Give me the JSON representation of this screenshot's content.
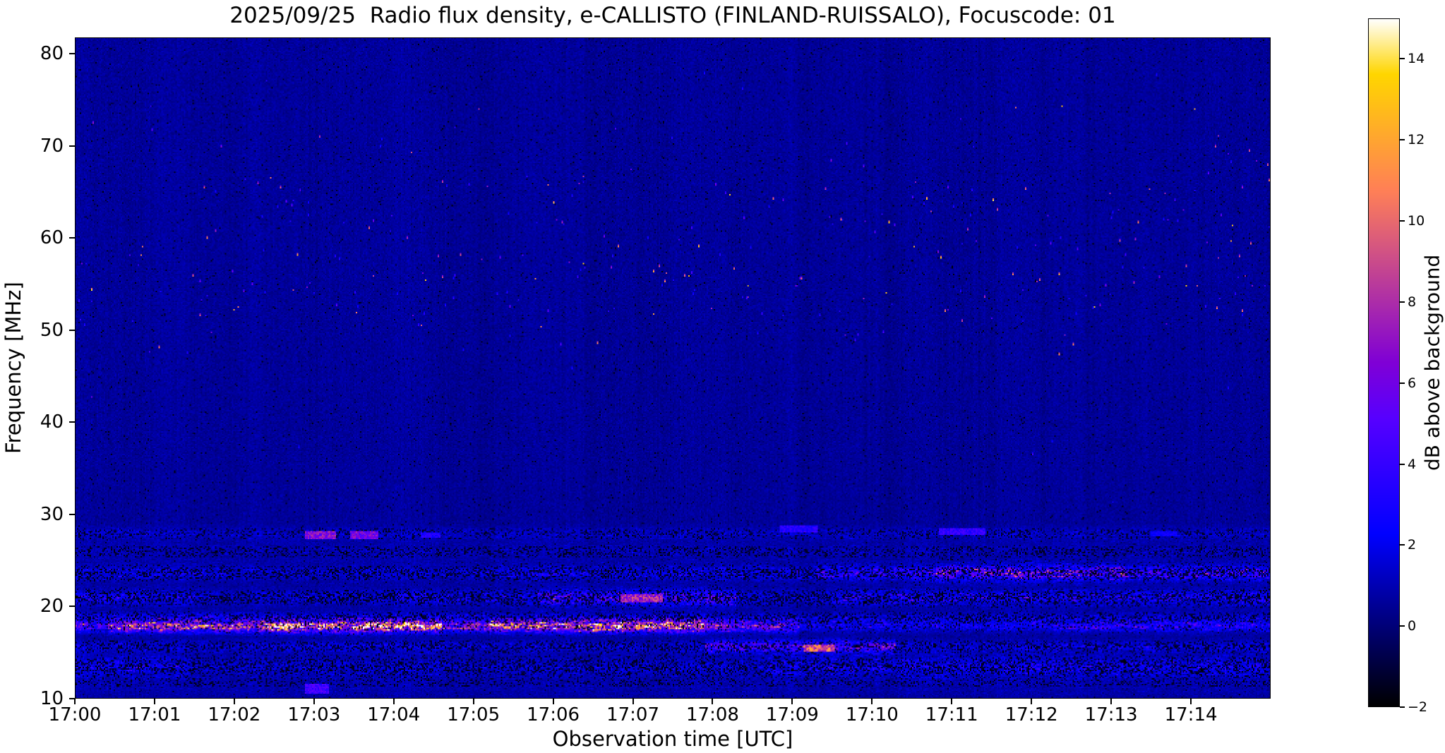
{
  "chart_data": {
    "type": "heatmap",
    "subtype": "radio-spectrogram",
    "title": "2025/09/25  Radio flux density, e-CALLISTO (FINLAND-RUISSALO), Focuscode: 01",
    "xlabel": "Observation time [UTC]",
    "ylabel": "Frequency [MHz]",
    "x_range_minutes": [
      0,
      15
    ],
    "x_start_label": "17:00",
    "x_tick_labels": [
      "17:00",
      "17:01",
      "17:02",
      "17:03",
      "17:04",
      "17:05",
      "17:06",
      "17:07",
      "17:08",
      "17:09",
      "17:10",
      "17:11",
      "17:12",
      "17:13",
      "17:14"
    ],
    "y_range_mhz": [
      10,
      81.8
    ],
    "y_ticks_mhz": [
      10,
      20,
      30,
      40,
      50,
      60,
      70,
      80
    ],
    "grid": false,
    "colorbar": {
      "label": "dB above background",
      "range_db": [
        -2,
        15
      ],
      "ticks_db": [
        -2,
        0,
        2,
        4,
        6,
        8,
        10,
        12,
        14
      ],
      "colormap": "gnuplot2"
    },
    "background": {
      "mean_db": 0.55,
      "noise_db": 0.42,
      "column_noise_db": 0.45,
      "dark_speckle_prob": 0.018
    },
    "bands": [
      {
        "name": "hf-28mhz",
        "f_center": 27.9,
        "f_sigma": 0.45,
        "base_amp": 1.1,
        "dark_prob": 0.3,
        "segments": [
          [
            0,
            15,
            1.0
          ]
        ]
      },
      {
        "name": "hf-26mhz",
        "f_center": 25.9,
        "f_sigma": 0.7,
        "base_amp": 0.7,
        "dark_prob": 0.35,
        "segments": [
          [
            0,
            15,
            1.0
          ]
        ]
      },
      {
        "name": "hf-23mhz",
        "f_center": 23.6,
        "f_sigma": 0.55,
        "base_amp": 2.2,
        "dark_prob": 0.45,
        "segments": [
          [
            0,
            2,
            0.8
          ],
          [
            2,
            5,
            0.6
          ],
          [
            5,
            9.3,
            0.9
          ],
          [
            9.3,
            10.8,
            1.6
          ],
          [
            10.8,
            13.2,
            2.6
          ],
          [
            13.2,
            15,
            1.7
          ]
        ]
      },
      {
        "name": "hf-21mhz",
        "f_center": 20.9,
        "f_sigma": 0.6,
        "base_amp": 2.0,
        "dark_prob": 0.5,
        "segments": [
          [
            0,
            1.5,
            1.1
          ],
          [
            1.5,
            4,
            0.7
          ],
          [
            4,
            5.8,
            1.0
          ],
          [
            5.8,
            8.3,
            2.2
          ],
          [
            8.3,
            9.5,
            0.8
          ],
          [
            9.5,
            15,
            1.3
          ]
        ]
      },
      {
        "name": "hf-19mhz",
        "f_center": 18.7,
        "f_sigma": 0.4,
        "base_amp": 1.6,
        "dark_prob": 0.45,
        "segments": [
          [
            0,
            8,
            1.2
          ],
          [
            8,
            15,
            0.9
          ]
        ]
      },
      {
        "name": "hf-18mhz",
        "f_center": 17.8,
        "f_sigma": 0.42,
        "base_amp": 4.5,
        "dark_prob": 0.15,
        "segments": [
          [
            0,
            0.4,
            1.0
          ],
          [
            0.4,
            2.3,
            2.0
          ],
          [
            2.3,
            4.6,
            2.9
          ],
          [
            4.6,
            5.2,
            1.6
          ],
          [
            5.2,
            7.9,
            2.6
          ],
          [
            7.9,
            9.1,
            1.5
          ],
          [
            9.1,
            12.3,
            0.5
          ],
          [
            12.3,
            15,
            0.7
          ]
        ]
      },
      {
        "name": "hf-15mhz",
        "f_center": 15.6,
        "f_sigma": 0.45,
        "base_amp": 1.8,
        "dark_prob": 0.4,
        "segments": [
          [
            0,
            7.9,
            0.8
          ],
          [
            7.9,
            10.3,
            2.8
          ],
          [
            10.3,
            15,
            0.9
          ]
        ]
      },
      {
        "name": "hf-13mhz",
        "f_center": 13.4,
        "f_sigma": 0.8,
        "base_amp": 1.6,
        "dark_prob": 0.45,
        "segments": [
          [
            0,
            1.4,
            1.3
          ],
          [
            1.4,
            8.7,
            0.8
          ],
          [
            8.7,
            15,
            1.4
          ]
        ]
      },
      {
        "name": "hf-11mhz",
        "f_center": 11.2,
        "f_sigma": 0.8,
        "base_amp": 0.8,
        "dark_prob": 0.3,
        "segments": [
          [
            0,
            15,
            0.6
          ]
        ]
      }
    ],
    "patches": [
      {
        "t": [
          2.9,
          3.25
        ],
        "f": [
          27.55,
          28.05
        ],
        "v": 6.5
      },
      {
        "t": [
          3.45,
          3.78
        ],
        "f": [
          27.55,
          28.05
        ],
        "v": 6.0
      },
      {
        "t": [
          4.35,
          4.55
        ],
        "f": [
          27.65,
          28.0
        ],
        "v": 3.2
      },
      {
        "t": [
          8.85,
          9.3
        ],
        "f": [
          28.25,
          28.7
        ],
        "v": 3.4
      },
      {
        "t": [
          10.85,
          11.4
        ],
        "f": [
          27.95,
          28.45
        ],
        "v": 3.8
      },
      {
        "t": [
          13.5,
          13.8
        ],
        "f": [
          27.75,
          28.1
        ],
        "v": 2.6
      },
      {
        "t": [
          2.9,
          3.15
        ],
        "f": [
          10.7,
          11.4
        ],
        "v": 4.2
      },
      {
        "t": [
          9.15,
          9.5
        ],
        "f": [
          15.3,
          15.8
        ],
        "v": 9.5
      },
      {
        "t": [
          6.85,
          7.35
        ],
        "f": [
          20.6,
          21.2
        ],
        "v": 7.5
      }
    ],
    "speckle_regions": [
      {
        "f": [
          51.5,
          56.5
        ],
        "density": 0.0032,
        "v": [
          3,
          14.5
        ],
        "exp": 2
      },
      {
        "f": [
          56.5,
          66.5
        ],
        "density": 0.0026,
        "v": [
          3,
          14.5
        ],
        "exp": 2
      },
      {
        "f": [
          47.0,
          51.5
        ],
        "density": 0.0013,
        "v": [
          3,
          12
        ],
        "exp": 2
      },
      {
        "f": [
          66.5,
          72.8
        ],
        "density": 0.0006,
        "v": [
          3,
          13
        ],
        "exp": 2
      },
      {
        "f": [
          72.8,
          74.4
        ],
        "density": 0.0014,
        "v": [
          4,
          13
        ],
        "exp": 1.6
      },
      {
        "f": [
          74.4,
          79.5
        ],
        "density": 0.00018,
        "v": [
          3,
          9
        ],
        "exp": 2
      },
      {
        "f": [
          29.5,
          47.0
        ],
        "density": 0.00012,
        "v": [
          2.5,
          7
        ],
        "exp": 2
      }
    ]
  }
}
